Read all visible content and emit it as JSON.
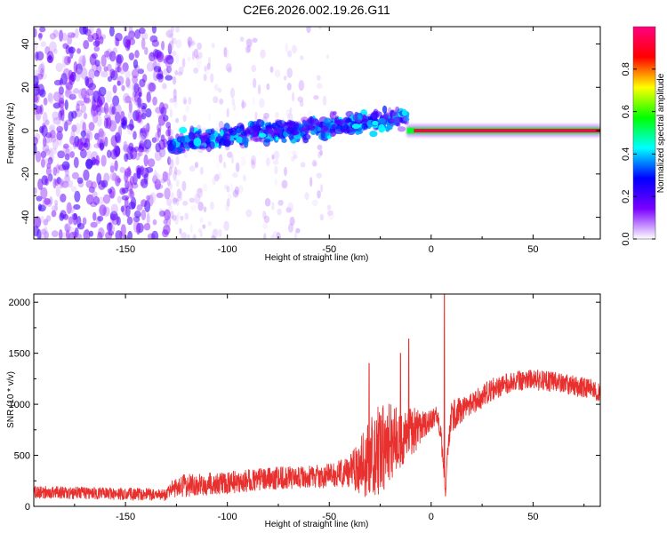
{
  "title": "C2E6.2026.002.19.26.G11",
  "chart_data": [
    {
      "type": "heatmap",
      "xlabel": "Height of straight line (km)",
      "ylabel": "Frequency (Hz)",
      "xlim": [
        -195,
        83
      ],
      "ylim": [
        -50,
        48
      ],
      "xticks": [
        -150,
        -100,
        -50,
        0,
        50
      ],
      "yticks": [
        -40,
        -20,
        0,
        20,
        40
      ],
      "colorbar": {
        "label": "Normalized spectral amplitude",
        "range": [
          0,
          1
        ],
        "ticks": [
          "0.0",
          "0.2",
          "0.4",
          "0.6",
          "0.8"
        ],
        "colors": [
          "#ffffff",
          "#7a00ff",
          "#0000ff",
          "#00ffff",
          "#00ff00",
          "#ffff00",
          "#ff0000",
          "#ff0080"
        ]
      },
      "features": [
        {
          "region": "noise",
          "x_range": [
            -195,
            -128
          ],
          "freq_range": [
            -50,
            48
          ],
          "amplitude": 0.15
        },
        {
          "region": "scattered",
          "x_range": [
            -128,
            -75
          ],
          "freq_range": [
            -50,
            48
          ],
          "amplitude": 0.05
        },
        {
          "region": "signal-band",
          "x": [
            -128,
            -100,
            -75,
            -50,
            -25,
            -12
          ],
          "freq": [
            -6,
            -3,
            0,
            2,
            4,
            6
          ],
          "amplitude": 0.3
        },
        {
          "region": "carrier",
          "x_range": [
            -12,
            83
          ],
          "freq": 0,
          "amplitude": 0.95
        }
      ]
    },
    {
      "type": "line",
      "xlabel": "Height of straight line (km)",
      "ylabel": "SNR (10 * v/v)",
      "xlim": [
        -195,
        83
      ],
      "ylim": [
        0,
        2080
      ],
      "xticks": [
        -150,
        -100,
        -50,
        0,
        50
      ],
      "yticks": [
        0,
        500,
        1000,
        1500,
        2000
      ],
      "series": [
        {
          "name": "SNR",
          "color": "#e8312f",
          "x": [
            -195,
            -170,
            -150,
            -130,
            -125,
            -115,
            -100,
            -90,
            -80,
            -70,
            -60,
            -50,
            -45,
            -40,
            -35,
            -30,
            -25,
            -20,
            -15,
            -10,
            -5,
            -3,
            0,
            3,
            5,
            7,
            8,
            10,
            15,
            20,
            30,
            40,
            50,
            60,
            70,
            83
          ],
          "values": [
            140,
            130,
            120,
            115,
            200,
            210,
            230,
            250,
            270,
            280,
            290,
            300,
            320,
            340,
            380,
            480,
            560,
            620,
            680,
            720,
            780,
            800,
            850,
            900,
            650,
            120,
            500,
            880,
            950,
            1000,
            1150,
            1230,
            1240,
            1220,
            1180,
            1130
          ],
          "noise": [
            60,
            60,
            60,
            60,
            110,
            110,
            110,
            110,
            110,
            110,
            110,
            120,
            130,
            150,
            280,
            400,
            450,
            380,
            300,
            260,
            160,
            120,
            100,
            100,
            100,
            60,
            80,
            150,
            130,
            110,
            110,
            100,
            100,
            100,
            100,
            100
          ],
          "spikes": [
            {
              "x": -30.5,
              "value": 1400
            },
            {
              "x": -15,
              "value": 1500
            },
            {
              "x": -11,
              "value": 1640
            },
            {
              "x": 6.5,
              "value": 2080
            }
          ]
        }
      ]
    }
  ]
}
